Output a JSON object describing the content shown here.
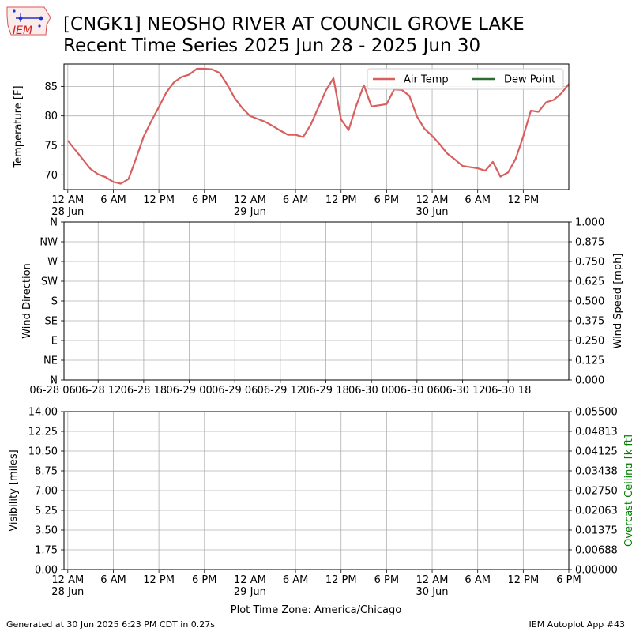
{
  "header": {
    "logo_text": "IEM",
    "title_line1": "[CNGK1] NEOSHO RIVER  AT COUNCIL GROVE LAKE",
    "title_line2": "Recent Time Series 2025 Jun 28 - 2025 Jun 30"
  },
  "footer": {
    "generated": "Generated at 30 Jun 2025 6:23 PM CDT in 0.27s",
    "app": "IEM Autoplot App #43",
    "timezone_label": "Plot Time Zone: America/Chicago"
  },
  "colors": {
    "air_temp": "#d95f5f",
    "dew_point": "#2e6b2e",
    "ceiling_axis": "#008000",
    "grid": "#b0b0b0"
  },
  "chart_data": [
    {
      "type": "line",
      "name": "temperature",
      "ylabel": "Temperature [F]",
      "xlim": [
        -0.5,
        66
      ],
      "ylim": [
        67.5,
        88.8
      ],
      "yticks": [
        70,
        75,
        80,
        85
      ],
      "xticks": [
        {
          "h": 0,
          "label": "12 AM",
          "sub": "28 Jun"
        },
        {
          "h": 6,
          "label": "6 AM",
          "sub": ""
        },
        {
          "h": 12,
          "label": "12 PM",
          "sub": ""
        },
        {
          "h": 18,
          "label": "6 PM",
          "sub": ""
        },
        {
          "h": 24,
          "label": "12 AM",
          "sub": "29 Jun"
        },
        {
          "h": 30,
          "label": "6 AM",
          "sub": ""
        },
        {
          "h": 36,
          "label": "12 PM",
          "sub": ""
        },
        {
          "h": 42,
          "label": "6 PM",
          "sub": ""
        },
        {
          "h": 48,
          "label": "12 AM",
          "sub": "30 Jun"
        },
        {
          "h": 54,
          "label": "6 AM",
          "sub": ""
        },
        {
          "h": 60,
          "label": "12 PM",
          "sub": ""
        }
      ],
      "legend": {
        "placement": "top-right",
        "entries": [
          "Air Temp",
          "Dew Point"
        ]
      },
      "series": [
        {
          "name": "Air Temp",
          "color": "#d95f5f",
          "x": [
            0,
            1,
            2,
            3,
            4,
            5,
            6,
            7,
            8,
            9,
            10,
            11,
            12,
            13,
            14,
            15,
            16,
            17,
            18,
            19,
            20,
            21,
            22,
            23,
            24,
            25,
            26,
            27,
            28,
            29,
            30,
            31,
            32,
            33,
            34,
            35,
            36,
            37,
            38,
            39,
            40,
            41,
            42,
            43,
            44,
            45,
            46,
            47,
            48,
            49,
            50,
            51,
            52,
            53,
            54,
            55,
            56,
            57,
            58,
            59,
            60,
            61,
            62,
            63,
            64,
            65,
            66
          ],
          "y": [
            75.8,
            74.2,
            72.6,
            71.0,
            70.1,
            69.6,
            68.8,
            68.5,
            69.3,
            72.8,
            76.5,
            79.1,
            81.5,
            84.0,
            85.7,
            86.6,
            87.0,
            88.0,
            88.0,
            87.9,
            87.3,
            85.3,
            83.0,
            81.3,
            80.0,
            79.5,
            79.0,
            78.3,
            77.5,
            76.8,
            76.8,
            76.4,
            78.5,
            81.4,
            84.3,
            86.4,
            79.4,
            77.6,
            81.7,
            85.2,
            81.6,
            81.8,
            82.0,
            84.5,
            84.4,
            83.4,
            79.9,
            77.8,
            76.6,
            75.2,
            73.6,
            72.6,
            71.5,
            71.3,
            71.1,
            70.7,
            72.2,
            69.7,
            70.4,
            72.7,
            76.5,
            80.9,
            80.7,
            82.3,
            82.7,
            83.8,
            85.4
          ]
        },
        {
          "name": "Dew Point",
          "color": "#2e6b2e",
          "x": [],
          "y": []
        }
      ]
    },
    {
      "type": "line",
      "name": "wind",
      "ylabel": "Wind Direction",
      "y2label": "Wind Speed [mph]",
      "xlim": [
        -0.5,
        66
      ],
      "yticks": [
        "N",
        "NE",
        "E",
        "SE",
        "S",
        "SW",
        "W",
        "NW",
        "N"
      ],
      "y2ticks": [
        "0.000",
        "0.125",
        "0.250",
        "0.375",
        "0.500",
        "0.625",
        "0.750",
        "0.875",
        "1.000"
      ],
      "xticks": [
        {
          "h": -2,
          "label": "06-28 06"
        },
        {
          "h": 4,
          "label": "06-28 12"
        },
        {
          "h": 10,
          "label": "06-28 18"
        },
        {
          "h": 16,
          "label": "06-29 00"
        },
        {
          "h": 22,
          "label": "06-29 06"
        },
        {
          "h": 28,
          "label": "06-29 12"
        },
        {
          "h": 34,
          "label": "06-29 18"
        },
        {
          "h": 40,
          "label": "06-30 00"
        },
        {
          "h": 46,
          "label": "06-30 06"
        },
        {
          "h": 52,
          "label": "06-30 12"
        },
        {
          "h": 58,
          "label": "06-30 18"
        }
      ],
      "series": []
    },
    {
      "type": "line",
      "name": "visibility",
      "ylabel": "Visibility [miles]",
      "y2label": "Overcast Ceiling [k ft]",
      "xlim": [
        -0.5,
        66
      ],
      "yticks": [
        "0.00",
        "1.75",
        "3.50",
        "5.25",
        "7.00",
        "8.75",
        "10.50",
        "12.25",
        "14.00"
      ],
      "y2ticks": [
        "0.00000",
        "0.00688",
        "0.01375",
        "0.02063",
        "0.02750",
        "0.03438",
        "0.04125",
        "0.04813",
        "0.05500"
      ],
      "xticks": [
        {
          "h": 0,
          "label": "12 AM",
          "sub": "28 Jun"
        },
        {
          "h": 6,
          "label": "6 AM",
          "sub": ""
        },
        {
          "h": 12,
          "label": "12 PM",
          "sub": ""
        },
        {
          "h": 18,
          "label": "6 PM",
          "sub": ""
        },
        {
          "h": 24,
          "label": "12 AM",
          "sub": "29 Jun"
        },
        {
          "h": 30,
          "label": "6 AM",
          "sub": ""
        },
        {
          "h": 36,
          "label": "12 PM",
          "sub": ""
        },
        {
          "h": 42,
          "label": "6 PM",
          "sub": ""
        },
        {
          "h": 48,
          "label": "12 AM",
          "sub": "30 Jun"
        },
        {
          "h": 54,
          "label": "6 AM",
          "sub": ""
        },
        {
          "h": 60,
          "label": "12 PM",
          "sub": ""
        },
        {
          "h": 66,
          "label": "6 PM",
          "sub": ""
        }
      ],
      "series": []
    }
  ]
}
